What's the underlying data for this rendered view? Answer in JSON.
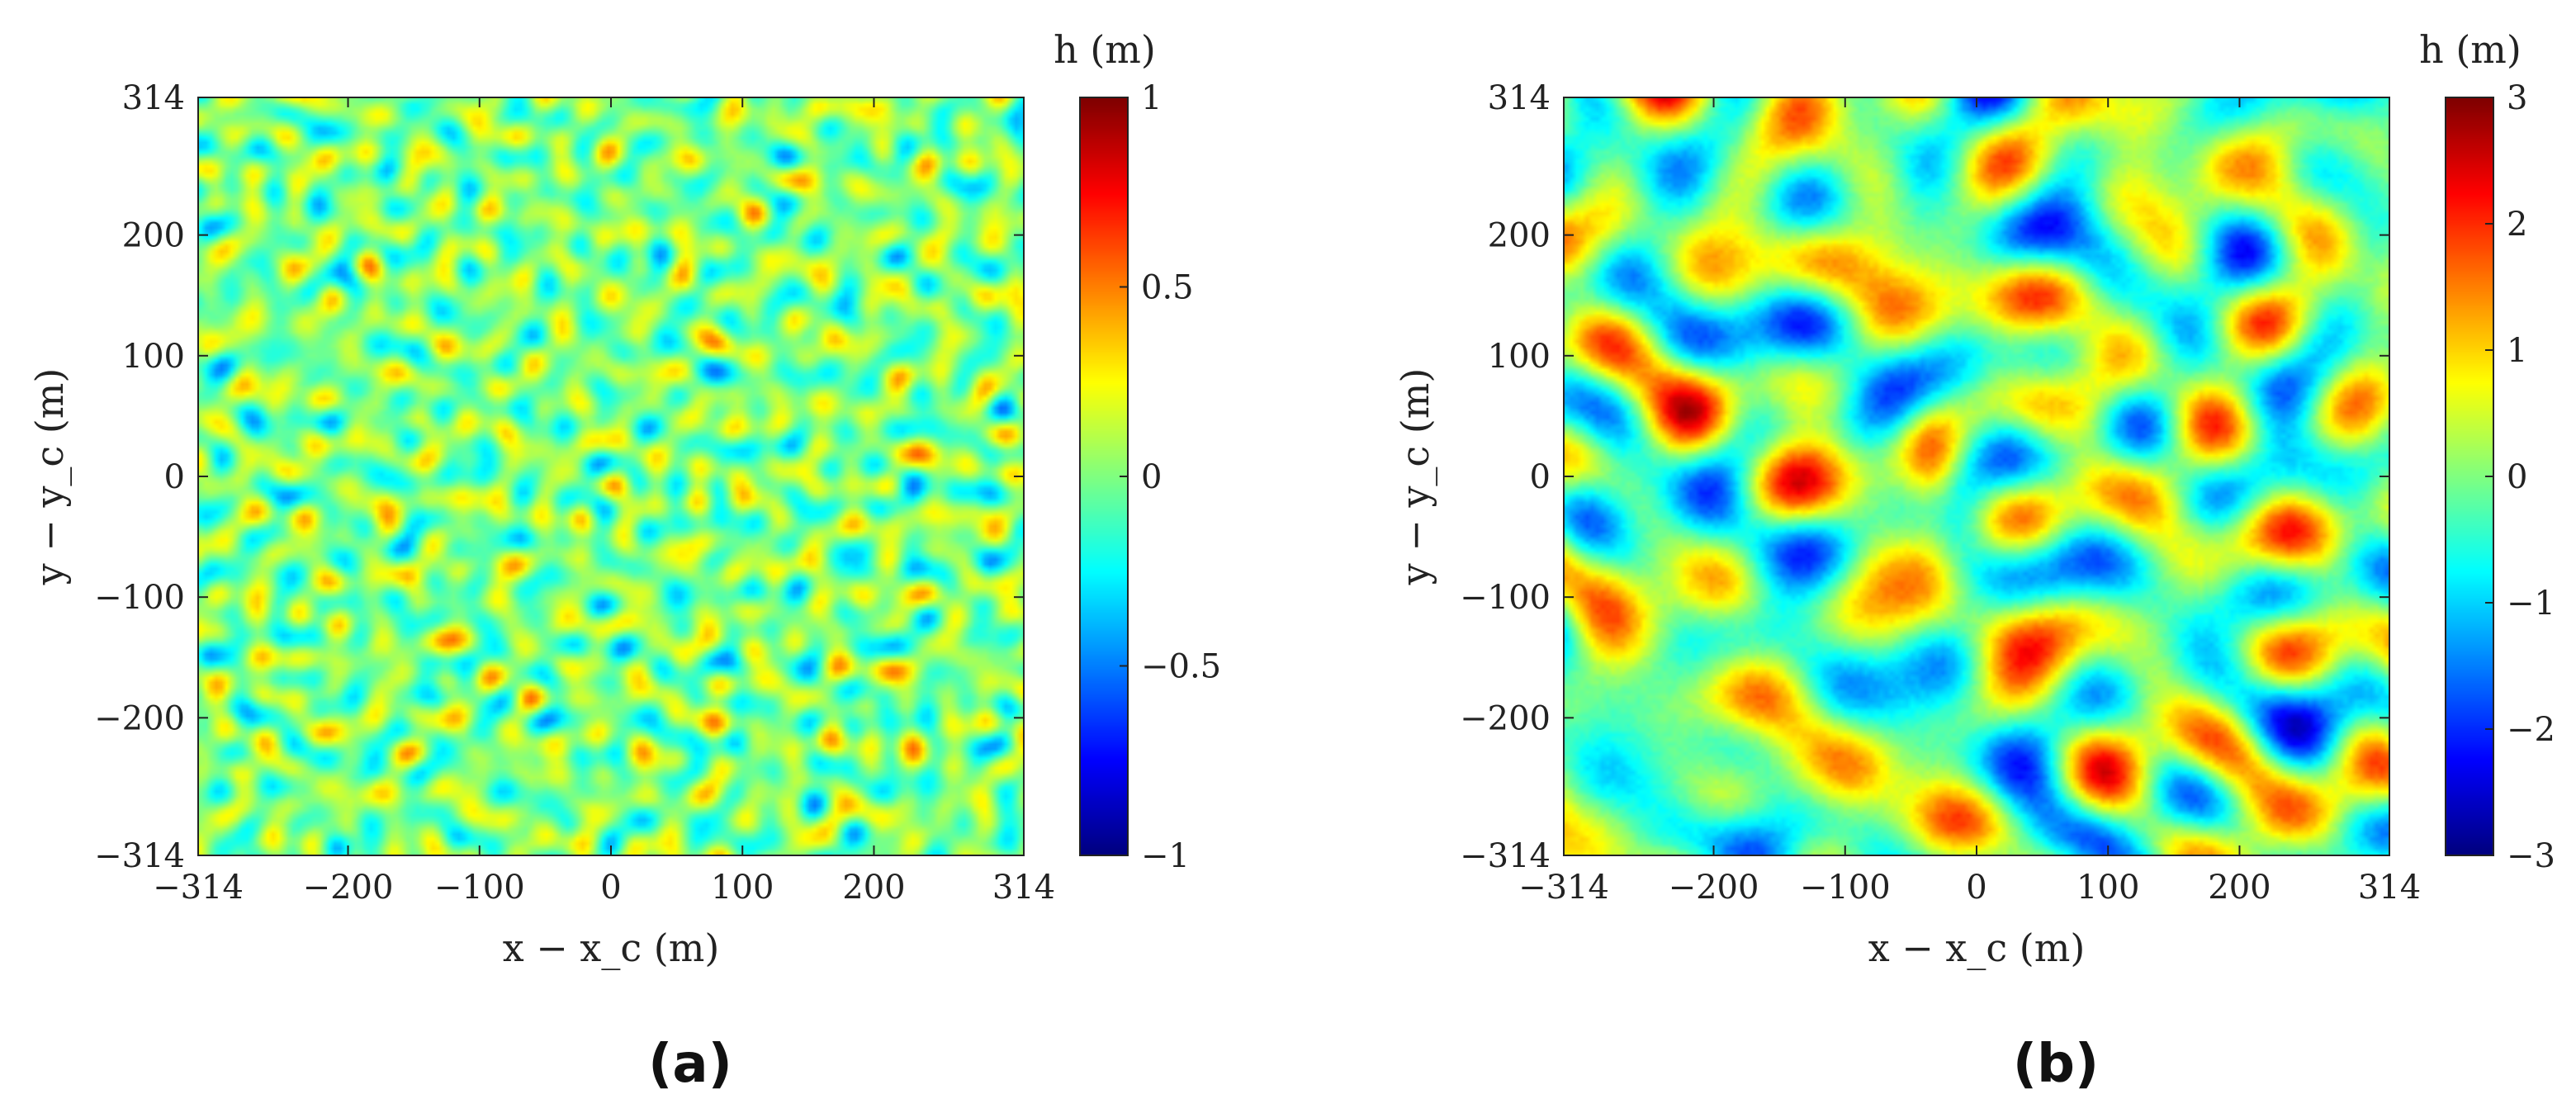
{
  "chart_data": [
    {
      "type": "heatmap",
      "panel_label": "(a)",
      "xlabel": "x − x_c (m)",
      "ylabel": "y − y_c (m)",
      "xlim": [
        -314,
        314
      ],
      "ylim": [
        -314,
        314
      ],
      "xticks": [
        "−314",
        "−200",
        "−100",
        "0",
        "100",
        "200",
        "314"
      ],
      "yticks": [
        "314",
        "200",
        "100",
        "0",
        "−100",
        "−200",
        "−314"
      ],
      "colorbar": {
        "label": "h (m)",
        "range": [
          -1,
          1
        ],
        "ticks": [
          "1",
          "0.5",
          "0",
          "−0.5",
          "−1"
        ],
        "colormap": "jet"
      },
      "field_description_amplitude": 0.35
    },
    {
      "type": "heatmap",
      "panel_label": "(b)",
      "xlabel": "x − x_c (m)",
      "ylabel": "y − y_c (m)",
      "xlim": [
        -314,
        314
      ],
      "ylim": [
        -314,
        314
      ],
      "xticks": [
        "−314",
        "−200",
        "−100",
        "0",
        "100",
        "200",
        "314"
      ],
      "yticks": [
        "314",
        "200",
        "100",
        "0",
        "−100",
        "−200",
        "−314"
      ],
      "colorbar": {
        "label": "h (m)",
        "range": [
          -3,
          3
        ],
        "ticks": [
          "3",
          "2",
          "1",
          "0",
          "−1",
          "−2",
          "−3"
        ],
        "colormap": "jet"
      },
      "field_description_amplitude": 1.3
    }
  ],
  "colors": {
    "axis": "#222222",
    "background": "#ffffff"
  }
}
